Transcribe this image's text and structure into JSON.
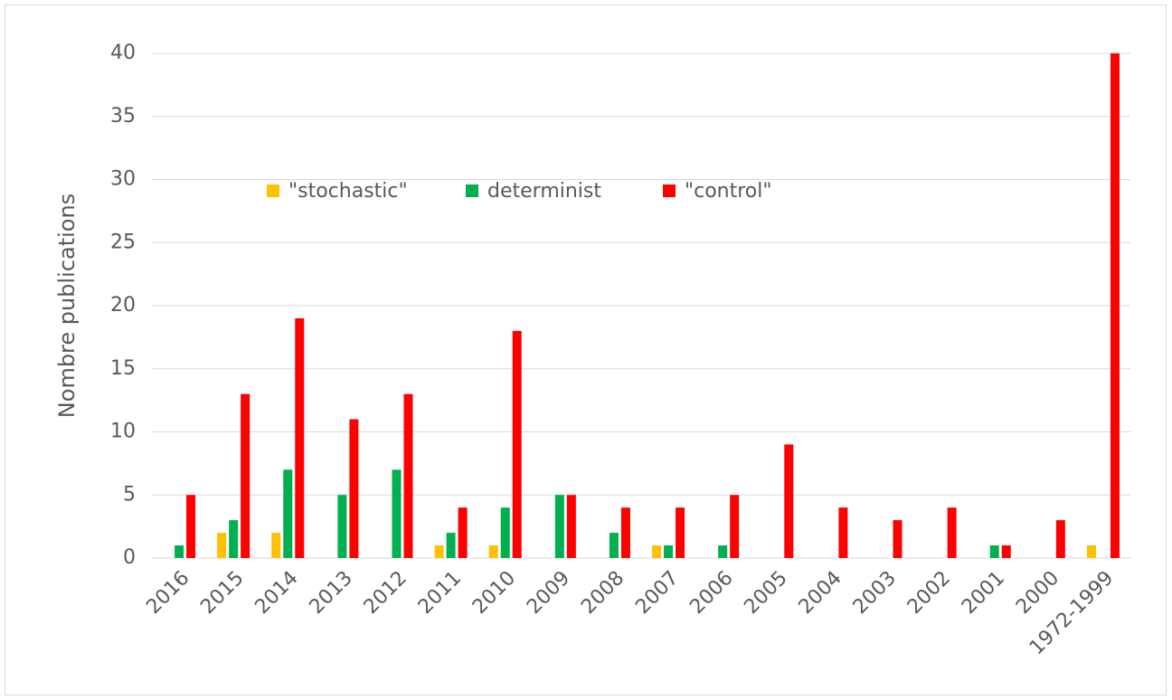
{
  "chart_data": {
    "type": "bar",
    "y_label": "Nombre publications",
    "categories": [
      "2016",
      "2015",
      "2014",
      "2013",
      "2012",
      "2011",
      "2010",
      "2009",
      "2008",
      "2007",
      "2006",
      "2005",
      "2004",
      "2003",
      "2002",
      "2001",
      "2000",
      "1972-1999"
    ],
    "series": [
      {
        "name": "\"stochastic\"",
        "color": "#ffc000",
        "values": [
          0,
          2,
          2,
          0,
          0,
          1,
          1,
          0,
          0,
          1,
          0,
          0,
          0,
          0,
          0,
          0,
          0,
          1
        ]
      },
      {
        "name": "determinist",
        "color": "#00b050",
        "values": [
          1,
          3,
          7,
          5,
          7,
          2,
          4,
          5,
          2,
          1,
          1,
          0,
          0,
          0,
          0,
          1,
          0,
          0
        ]
      },
      {
        "name": "\"control\"",
        "color": "#ff0000",
        "values": [
          5,
          13,
          19,
          11,
          13,
          4,
          18,
          5,
          4,
          4,
          5,
          9,
          4,
          3,
          4,
          1,
          3,
          40
        ]
      }
    ],
    "ylim": [
      0,
      40
    ],
    "yticks": [
      0,
      5,
      10,
      15,
      20,
      25,
      30,
      35,
      40
    ],
    "grid": true
  }
}
